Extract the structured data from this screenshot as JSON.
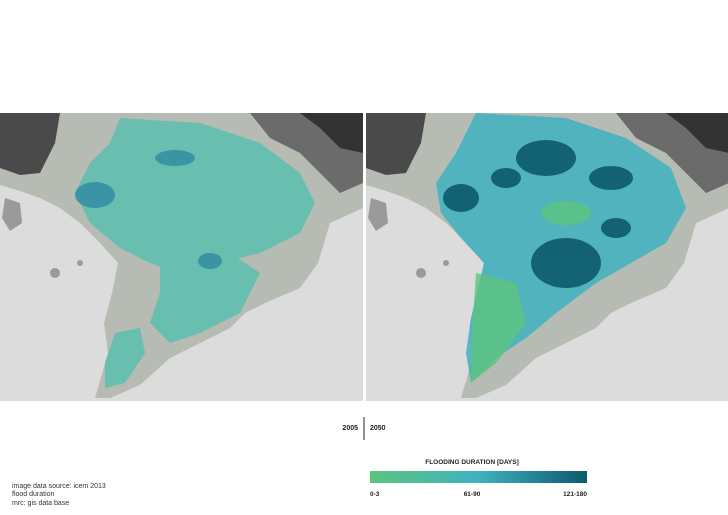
{
  "maps": [
    {
      "label": "2005"
    },
    {
      "label": "2050"
    }
  ],
  "legend": {
    "title": "FLOODING DURATION [DAYS]",
    "colors": [
      "#5cc47e",
      "#3fb2bf",
      "#0d5a6d"
    ],
    "labels": [
      "0-3",
      "61-90",
      "121-180"
    ]
  },
  "sources": [
    "image data source: icem 2013",
    "flood duration",
    "mrc: gis data base"
  ]
}
